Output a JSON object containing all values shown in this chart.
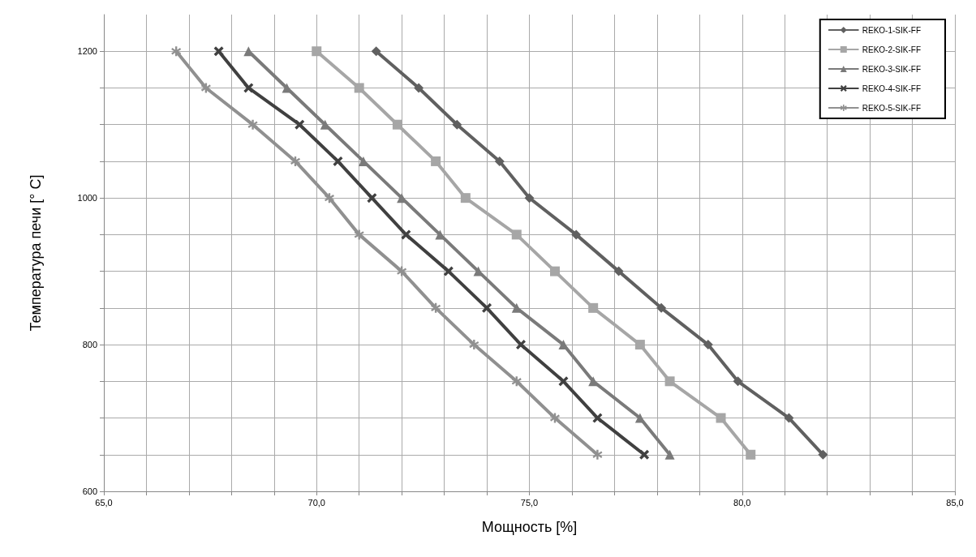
{
  "chart_data": {
    "type": "line",
    "xlabel": "Мощность [%]",
    "ylabel": "Температура печи [° C]",
    "xlim": [
      65,
      85
    ],
    "ylim": [
      600,
      1250
    ],
    "xticks": [
      {
        "value": 65,
        "label": "65,0"
      },
      {
        "value": 66,
        "label": null
      },
      {
        "value": 67,
        "label": null
      },
      {
        "value": 68,
        "label": null
      },
      {
        "value": 69,
        "label": null
      },
      {
        "value": 70,
        "label": "70,0"
      },
      {
        "value": 71,
        "label": null
      },
      {
        "value": 72,
        "label": null
      },
      {
        "value": 73,
        "label": null
      },
      {
        "value": 74,
        "label": null
      },
      {
        "value": 75,
        "label": "75,0"
      },
      {
        "value": 76,
        "label": null
      },
      {
        "value": 77,
        "label": null
      },
      {
        "value": 78,
        "label": null
      },
      {
        "value": 79,
        "label": null
      },
      {
        "value": 80,
        "label": "80,0"
      },
      {
        "value": 81,
        "label": null
      },
      {
        "value": 82,
        "label": null
      },
      {
        "value": 83,
        "label": null
      },
      {
        "value": 84,
        "label": null
      },
      {
        "value": 85,
        "label": "85,0"
      }
    ],
    "yticks": [
      600,
      {
        "value": 650,
        "label": null
      },
      {
        "value": 700,
        "label": null
      },
      {
        "value": 750,
        "label": null
      },
      800,
      {
        "value": 850,
        "label": null
      },
      {
        "value": 900,
        "label": null
      },
      {
        "value": 950,
        "label": null
      },
      1000,
      {
        "value": 1050,
        "label": null
      },
      {
        "value": 1100,
        "label": null
      },
      {
        "value": 1150,
        "label": null
      },
      1200
    ],
    "grid": true,
    "legend": "top right",
    "line_style": "solid",
    "series": [
      {
        "name": "REKO-1-SIK-FF",
        "color": "#606060",
        "marker": "diamond",
        "x": [
          71.4,
          72.4,
          73.3,
          74.3,
          75.0,
          76.1,
          77.1,
          78.1,
          79.2,
          79.9,
          81.1,
          81.9
        ],
        "values": [
          1200,
          1150,
          1100,
          1050,
          1000,
          950,
          900,
          850,
          800,
          750,
          700,
          650
        ]
      },
      {
        "name": "REKO-2-SIK-FF",
        "color": "#a6a6a6",
        "marker": "square",
        "x": [
          70.0,
          71.0,
          71.9,
          72.8,
          73.5,
          74.7,
          75.6,
          76.5,
          77.6,
          78.3,
          79.5,
          80.2
        ],
        "values": [
          1200,
          1150,
          1100,
          1050,
          1000,
          950,
          900,
          850,
          800,
          750,
          700,
          650
        ]
      },
      {
        "name": "REKO-3-SIK-FF",
        "color": "#7a7a7a",
        "marker": "triangle",
        "x": [
          68.4,
          69.3,
          70.2,
          71.1,
          72.0,
          72.9,
          73.8,
          74.7,
          75.8,
          76.5,
          77.6,
          78.3
        ],
        "values": [
          1200,
          1150,
          1100,
          1050,
          1000,
          950,
          900,
          850,
          800,
          750,
          700,
          650
        ]
      },
      {
        "name": "REKO-4-SIK-FF",
        "color": "#404040",
        "marker": "cross",
        "x": [
          67.7,
          68.4,
          69.6,
          70.5,
          71.3,
          72.1,
          73.1,
          74.0,
          74.8,
          75.8,
          76.6,
          77.7
        ],
        "values": [
          1200,
          1150,
          1100,
          1050,
          1000,
          950,
          900,
          850,
          800,
          750,
          700,
          650
        ]
      },
      {
        "name": "REKO-5-SIK-FF",
        "color": "#909090",
        "marker": "star",
        "x": [
          66.7,
          67.4,
          68.5,
          69.5,
          70.3,
          71.0,
          72.0,
          72.8,
          73.7,
          74.7,
          75.6,
          76.6
        ],
        "values": [
          1200,
          1150,
          1100,
          1050,
          1000,
          950,
          900,
          850,
          800,
          750,
          700,
          650
        ]
      }
    ]
  }
}
